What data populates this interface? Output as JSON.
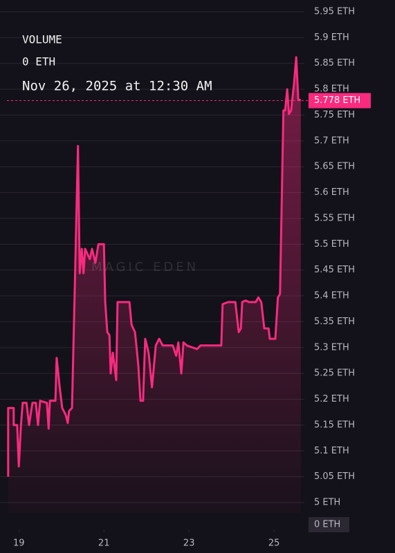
{
  "chart_data": {
    "type": "line",
    "header": {
      "metric": "VOLUME",
      "metric_value": "0 ETH",
      "timestamp": "Nov 26, 2025 at 12:30 AM"
    },
    "watermark": "MAGIC EDEN",
    "x": [
      18.75,
      18.75,
      18.88,
      18.88,
      18.96,
      19.0,
      19.05,
      19.09,
      19.18,
      19.24,
      19.32,
      19.4,
      19.45,
      19.5,
      19.66,
      19.7,
      19.73,
      19.86,
      19.89,
      19.96,
      20.02,
      20.1,
      20.15,
      20.18,
      20.25,
      20.31,
      20.35,
      20.39,
      20.43,
      20.48,
      20.52,
      20.56,
      20.67,
      20.72,
      20.8,
      20.87,
      21.0,
      21.03,
      21.08,
      21.13,
      21.16,
      21.21,
      21.29,
      21.32,
      21.6,
      21.65,
      21.73,
      21.78,
      21.81,
      21.86,
      21.92,
      21.97,
      22.05,
      22.13,
      22.22,
      22.3,
      22.38,
      22.62,
      22.7,
      22.75,
      22.82,
      22.87,
      22.95,
      23.19,
      23.27,
      23.76,
      23.79,
      23.92,
      24.09,
      24.17,
      24.22,
      24.25,
      24.33,
      24.41,
      24.57,
      24.63,
      24.7,
      24.77,
      24.87,
      24.9,
      25.03,
      25.09,
      25.14,
      25.22,
      25.26,
      25.31,
      25.35,
      25.4,
      25.47,
      25.52,
      25.57,
      25.63
    ],
    "series": [
      {
        "color": "#fa2a7f",
        "values": [
          5.05,
          5.183,
          5.183,
          5.15,
          5.15,
          5.07,
          5.15,
          5.193,
          5.193,
          5.15,
          5.193,
          5.193,
          5.15,
          5.197,
          5.193,
          5.143,
          5.197,
          5.197,
          5.28,
          5.223,
          5.183,
          5.17,
          5.154,
          5.177,
          5.183,
          5.397,
          5.54,
          5.69,
          5.444,
          5.491,
          5.444,
          5.491,
          5.471,
          5.491,
          5.464,
          5.5,
          5.5,
          5.388,
          5.33,
          5.324,
          5.25,
          5.29,
          5.237,
          5.388,
          5.388,
          5.344,
          5.33,
          5.29,
          5.264,
          5.197,
          5.197,
          5.317,
          5.29,
          5.223,
          5.304,
          5.317,
          5.304,
          5.304,
          5.284,
          5.31,
          5.25,
          5.31,
          5.304,
          5.297,
          5.304,
          5.304,
          5.384,
          5.388,
          5.388,
          5.33,
          5.337,
          5.388,
          5.391,
          5.388,
          5.388,
          5.397,
          5.388,
          5.337,
          5.337,
          5.317,
          5.317,
          5.397,
          5.404,
          5.759,
          5.759,
          5.8,
          5.752,
          5.759,
          5.812,
          5.862,
          5.779,
          5.779
        ]
      }
    ],
    "xlim": [
      18.72,
      25.68
    ],
    "xticks": [
      19,
      21,
      23,
      25
    ],
    "ylim": [
      5,
      5.95
    ],
    "yticks": [
      {
        "value": 5,
        "label": "5 ETH"
      },
      {
        "value": 5.05,
        "label": "5.05 ETH"
      },
      {
        "value": 5.1,
        "label": "5.1 ETH"
      },
      {
        "value": 5.15,
        "label": "5.15 ETH"
      },
      {
        "value": 5.2,
        "label": "5.2 ETH"
      },
      {
        "value": 5.25,
        "label": "5.25 ETH"
      },
      {
        "value": 5.3,
        "label": "5.3 ETH"
      },
      {
        "value": 5.35,
        "label": "5.35 ETH"
      },
      {
        "value": 5.4,
        "label": "5.4 ETH"
      },
      {
        "value": 5.45,
        "label": "5.45 ETH"
      },
      {
        "value": 5.5,
        "label": "5.5 ETH"
      },
      {
        "value": 5.55,
        "label": "5.55 ETH"
      },
      {
        "value": 5.6,
        "label": "5.6 ETH"
      },
      {
        "value": 5.65,
        "label": "5.65 ETH"
      },
      {
        "value": 5.7,
        "label": "5.7 ETH"
      },
      {
        "value": 5.75,
        "label": "5.75 ETH"
      },
      {
        "value": 5.8,
        "label": "5.8 ETH"
      },
      {
        "value": 5.85,
        "label": "5.85 ETH"
      },
      {
        "value": 5.9,
        "label": "5.9 ETH"
      },
      {
        "value": 5.95,
        "label": "5.95 ETH"
      }
    ],
    "y2ticks": [
      {
        "value": 0,
        "label": "0 ETH"
      }
    ],
    "current_price": {
      "value": 5.778,
      "label": "5.778 ETH"
    },
    "grid": true
  }
}
